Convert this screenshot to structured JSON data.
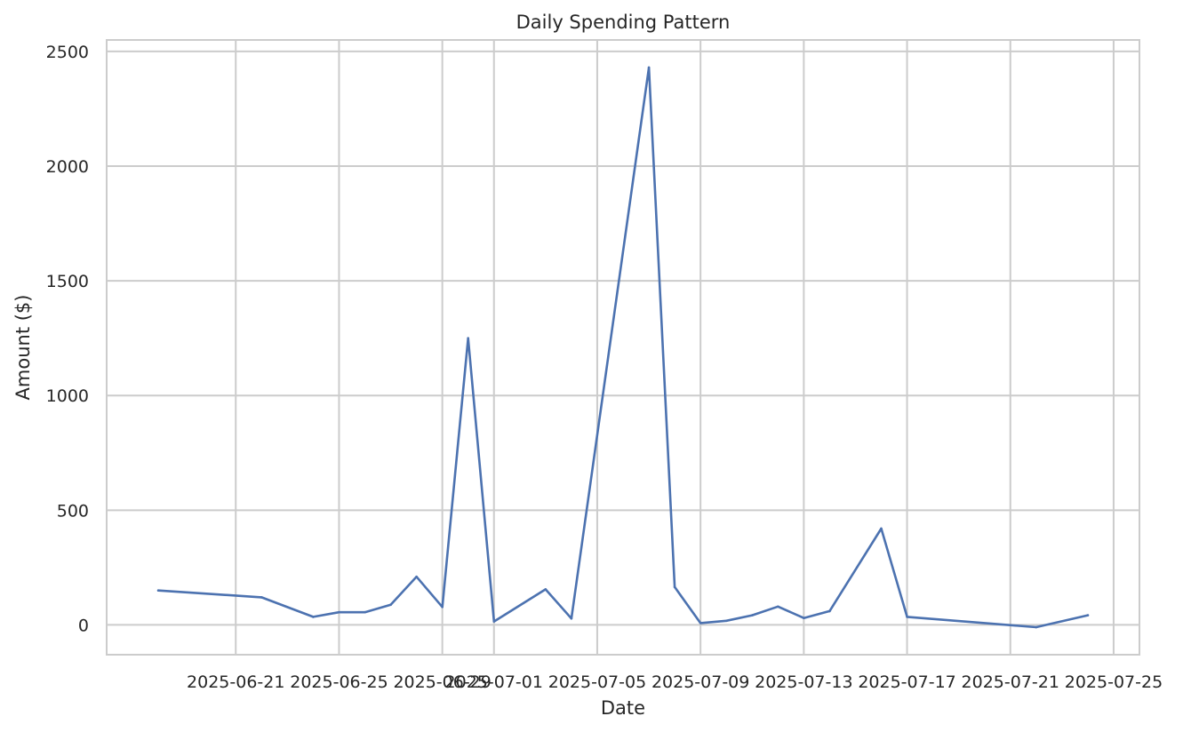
{
  "chart_data": {
    "type": "line",
    "title": "Daily Spending Pattern",
    "xlabel": "Date",
    "ylabel": "Amount ($)",
    "x_ticks": [
      "2025-06-21",
      "2025-06-25",
      "2025-06-29",
      "2025-07-01",
      "2025-07-05",
      "2025-07-09",
      "2025-07-13",
      "2025-07-17",
      "2025-07-21",
      "2025-07-25"
    ],
    "y_ticks": [
      0,
      500,
      1000,
      1500,
      2000,
      2500
    ],
    "xlim": [
      "2025-06-16",
      "2025-07-26"
    ],
    "ylim": [
      -130,
      2550
    ],
    "grid": true,
    "colors": {
      "line": "#4c72b0",
      "grid": "#cccccc",
      "frame": "#cccccc"
    },
    "series": [
      {
        "x": [
          "2025-06-18",
          "2025-06-22",
          "2025-06-24",
          "2025-06-25",
          "2025-06-26",
          "2025-06-27",
          "2025-06-28",
          "2025-06-29",
          "2025-06-30",
          "2025-07-01",
          "2025-07-03",
          "2025-07-04",
          "2025-07-07",
          "2025-07-08",
          "2025-07-09",
          "2025-07-10",
          "2025-07-11",
          "2025-07-12",
          "2025-07-13",
          "2025-07-14",
          "2025-07-16",
          "2025-07-17",
          "2025-07-22",
          "2025-07-24"
        ],
        "values": [
          150,
          120,
          35,
          55,
          55,
          88,
          210,
          78,
          1250,
          15,
          155,
          28,
          2430,
          165,
          8,
          18,
          42,
          80,
          30,
          60,
          420,
          35,
          -10,
          42
        ]
      }
    ]
  }
}
